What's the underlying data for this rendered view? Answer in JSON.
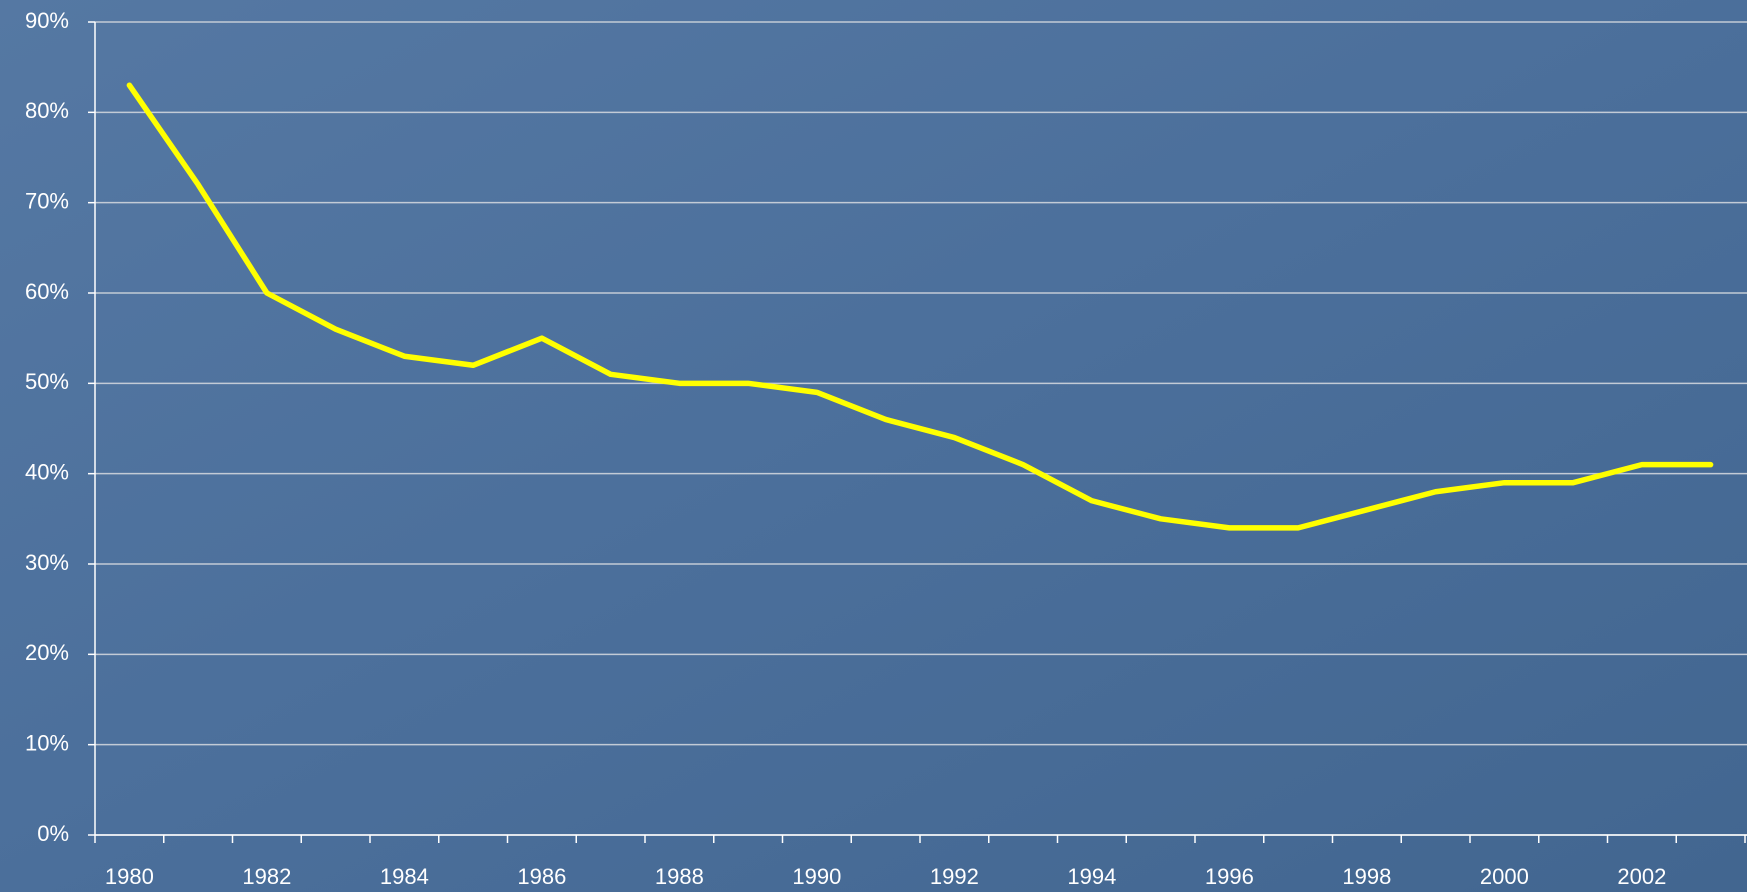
{
  "chart_data": {
    "type": "line",
    "categories": [
      "1980",
      null,
      "1982",
      null,
      "1984",
      null,
      "1986",
      null,
      "1988",
      null,
      "1990",
      null,
      "1992",
      null,
      "1994",
      null,
      "1996",
      null,
      "1998",
      null,
      "2000",
      null,
      "2002",
      null
    ],
    "series": [
      {
        "color": "#ffff00",
        "values": [
          83,
          72,
          60,
          56,
          53,
          52,
          55,
          51,
          50,
          50,
          49,
          46,
          44,
          41,
          37,
          35,
          34,
          34,
          36,
          38,
          39,
          39,
          41,
          41
        ]
      }
    ],
    "ylim": [
      0,
      90
    ],
    "yticks": [
      {
        "value": 0,
        "label": "0%"
      },
      {
        "value": 10,
        "label": "10%"
      },
      {
        "value": 20,
        "label": "20%"
      },
      {
        "value": 30,
        "label": "30%"
      },
      {
        "value": 40,
        "label": "40%"
      },
      {
        "value": 50,
        "label": "50%"
      },
      {
        "value": 60,
        "label": "60%"
      },
      {
        "value": 70,
        "label": "70%"
      },
      {
        "value": 80,
        "label": "80%"
      },
      {
        "value": 90,
        "label": "90%"
      }
    ],
    "grid": true
  }
}
